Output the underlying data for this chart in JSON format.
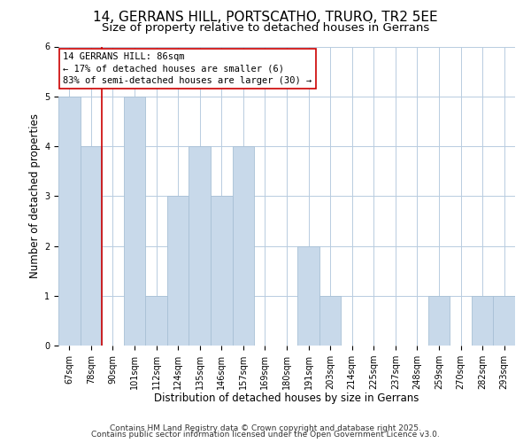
{
  "title1": "14, GERRANS HILL, PORTSCATHO, TRURO, TR2 5EE",
  "title2": "Size of property relative to detached houses in Gerrans",
  "xlabel": "Distribution of detached houses by size in Gerrans",
  "ylabel": "Number of detached properties",
  "footer1": "Contains HM Land Registry data © Crown copyright and database right 2025.",
  "footer2": "Contains public sector information licensed under the Open Government Licence v3.0.",
  "annotation_title": "14 GERRANS HILL: 86sqm",
  "annotation_line2": "← 17% of detached houses are smaller (6)",
  "annotation_line3": "83% of semi-detached houses are larger (30) →",
  "bar_labels": [
    "67sqm",
    "78sqm",
    "90sqm",
    "101sqm",
    "112sqm",
    "124sqm",
    "135sqm",
    "146sqm",
    "157sqm",
    "169sqm",
    "180sqm",
    "191sqm",
    "203sqm",
    "214sqm",
    "225sqm",
    "237sqm",
    "248sqm",
    "259sqm",
    "270sqm",
    "282sqm",
    "293sqm"
  ],
  "bar_values": [
    5,
    4,
    0,
    5,
    1,
    3,
    4,
    3,
    4,
    0,
    0,
    2,
    1,
    0,
    0,
    0,
    0,
    1,
    0,
    1,
    1
  ],
  "bar_color": "#c8d9ea",
  "bar_edge_color": "#a8c0d6",
  "reference_line_color": "#cc0000",
  "ylim_max": 6,
  "background_color": "#ffffff",
  "grid_color": "#b8cce0",
  "annotation_box_color": "#ffffff",
  "annotation_box_edge": "#cc0000",
  "title_fontsize": 11,
  "subtitle_fontsize": 9.5,
  "axis_label_fontsize": 8.5,
  "tick_fontsize": 7,
  "annotation_fontsize": 7.5,
  "footer_fontsize": 6.5
}
